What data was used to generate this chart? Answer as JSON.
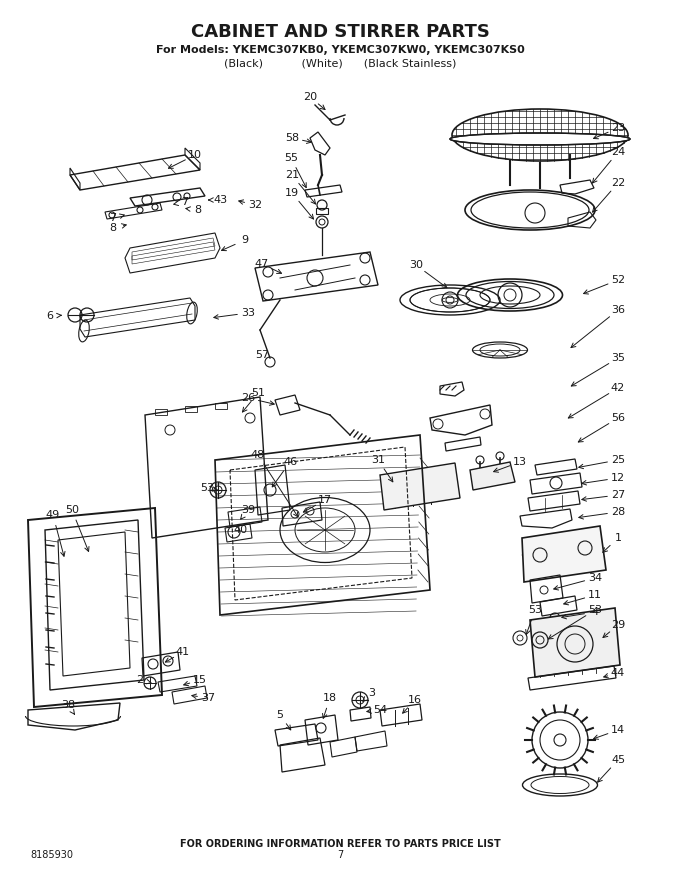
{
  "title": "CABINET AND STIRRER PARTS",
  "subtitle1": "For Models: YKEMC307KB0, YKEMC307KW0, YKEMC307KS0",
  "subtitle2": "(Black)           (White)      (Black Stainless)",
  "footer_text": "FOR ORDERING INFORMATION REFER TO PARTS PRICE LIST",
  "part_number_bottom_left": "8185930",
  "page_number": "7",
  "bg_color": "#ffffff",
  "line_color": "#1a1a1a",
  "text_color": "#1a1a1a"
}
